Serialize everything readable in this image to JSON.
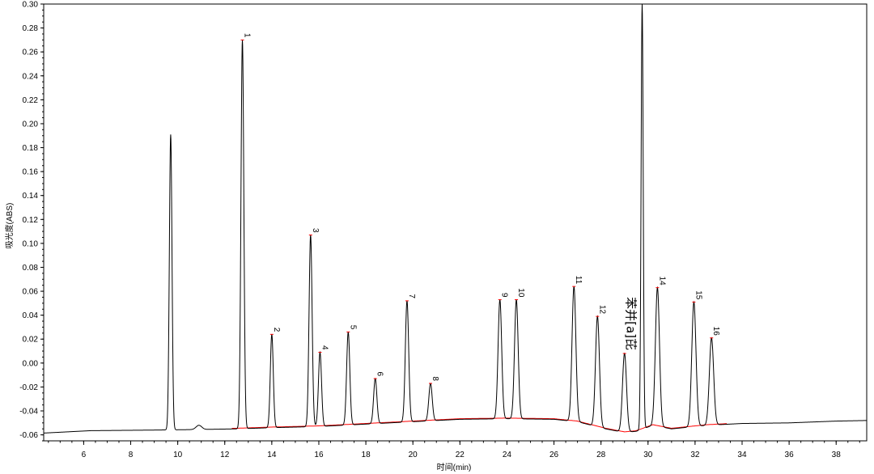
{
  "chart_data": {
    "type": "line",
    "title": "",
    "xlabel": "时间(min)",
    "ylabel": "吸光度(ABS)",
    "xlim": [
      4.3,
      39.3
    ],
    "ylim": [
      -0.065,
      0.3
    ],
    "x_ticks": [
      6,
      8,
      10,
      12,
      14,
      16,
      18,
      20,
      22,
      24,
      26,
      28,
      30,
      32,
      34,
      36,
      38
    ],
    "y_ticks": [
      -0.06,
      -0.04,
      -0.02,
      0.0,
      0.02,
      0.04,
      0.06,
      0.08,
      0.1,
      0.12,
      0.14,
      0.16,
      0.18,
      0.2,
      0.22,
      0.24,
      0.26,
      0.28,
      0.3
    ],
    "y_tick_labels": [
      "-0.06",
      "-0.04",
      "-0.02",
      "0.00",
      "0.02",
      "0.04",
      "0.06",
      "0.08",
      "0.10",
      "0.12",
      "0.14",
      "0.16",
      "0.18",
      "0.20",
      "0.22",
      "0.24",
      "0.26",
      "0.28",
      "0.30"
    ],
    "grid": false,
    "colors": {
      "trace": "#000000",
      "baseline": "#ff0000"
    },
    "baseline_points": [
      [
        4.3,
        -0.0585
      ],
      [
        6.3,
        -0.0565
      ],
      [
        9.0,
        -0.056
      ],
      [
        11.0,
        -0.0555
      ],
      [
        12.5,
        -0.055
      ],
      [
        14.0,
        -0.054
      ],
      [
        16.0,
        -0.053
      ],
      [
        18.0,
        -0.051
      ],
      [
        20.0,
        -0.049
      ],
      [
        22.0,
        -0.047
      ],
      [
        24.0,
        -0.0465
      ],
      [
        26.0,
        -0.047
      ],
      [
        27.0,
        -0.049
      ],
      [
        28.2,
        -0.055
      ],
      [
        29.0,
        -0.058
      ],
      [
        29.5,
        -0.057
      ],
      [
        30.2,
        -0.052
      ],
      [
        31.0,
        -0.055
      ],
      [
        32.5,
        -0.052
      ],
      [
        34.0,
        -0.0505
      ],
      [
        36.0,
        -0.05
      ],
      [
        38.0,
        -0.0485
      ],
      [
        39.3,
        -0.048
      ]
    ],
    "unlabeled_peaks": [
      {
        "rt": 9.7,
        "height": 0.191
      },
      {
        "rt": 10.9,
        "height": -0.052
      },
      {
        "rt": 29.75,
        "height": 0.3
      }
    ],
    "peaks": [
      {
        "label": "1",
        "rt": 12.75,
        "height": 0.27
      },
      {
        "label": "2",
        "rt": 14.0,
        "height": 0.024
      },
      {
        "label": "3",
        "rt": 15.65,
        "height": 0.107
      },
      {
        "label": "4",
        "rt": 16.05,
        "height": 0.009
      },
      {
        "label": "5",
        "rt": 17.25,
        "height": 0.026
      },
      {
        "label": "6",
        "rt": 18.4,
        "height": -0.013
      },
      {
        "label": "7",
        "rt": 19.75,
        "height": 0.052
      },
      {
        "label": "8",
        "rt": 20.75,
        "height": -0.017
      },
      {
        "label": "9",
        "rt": 23.7,
        "height": 0.053
      },
      {
        "label": "10",
        "rt": 24.4,
        "height": 0.053
      },
      {
        "label": "11",
        "rt": 26.85,
        "height": 0.064
      },
      {
        "label": "12",
        "rt": 27.85,
        "height": 0.039
      },
      {
        "label": "苯并[a]芘",
        "rt": 29.0,
        "height": 0.008
      },
      {
        "label": "14",
        "rt": 30.4,
        "height": 0.063
      },
      {
        "label": "15",
        "rt": 31.95,
        "height": 0.051
      },
      {
        "label": "16",
        "rt": 32.7,
        "height": 0.021
      }
    ]
  }
}
